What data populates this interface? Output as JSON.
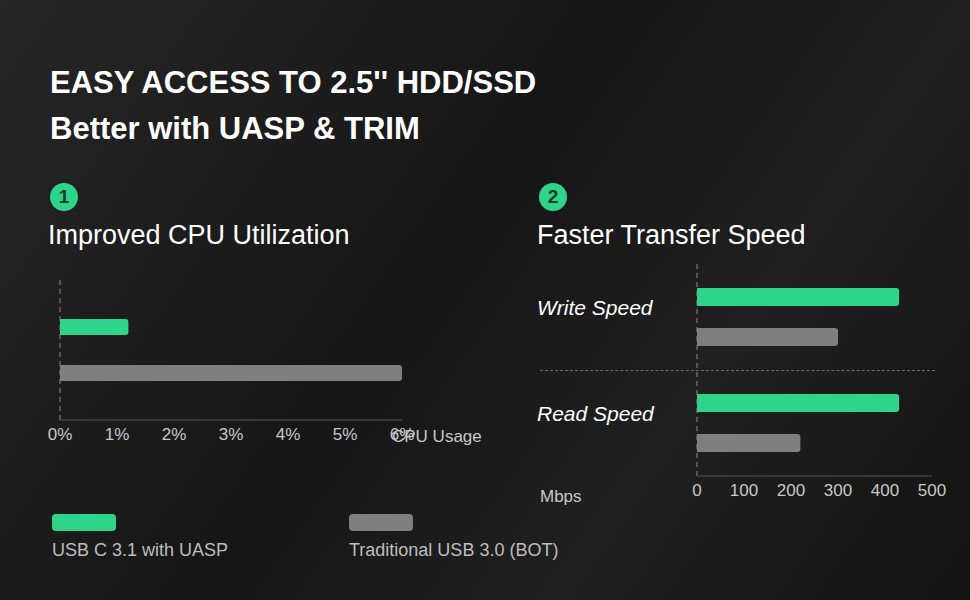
{
  "title": "EASY ACCESS TO 2.5'' HDD/SSD",
  "subtitle": "Better with UASP & TRIM",
  "chart_data": [
    {
      "type": "bar",
      "orientation": "horizontal",
      "badge": "1",
      "title": "Improved CPU Utilization",
      "xlabel": "CPU Usage",
      "categories": [
        null
      ],
      "series": [
        {
          "name": "USB C 3.1 with UASP",
          "color": "#2ed48a",
          "values": [
            1.2
          ]
        },
        {
          "name": "Traditional USB 3.0 (BOT)",
          "color": "#7f7f7f",
          "values": [
            6
          ]
        }
      ],
      "xlim": [
        0,
        6
      ],
      "xticks": [
        {
          "value": 0,
          "label": "0%"
        },
        {
          "value": 1,
          "label": "1%"
        },
        {
          "value": 2,
          "label": "2%"
        },
        {
          "value": 3,
          "label": "3%"
        },
        {
          "value": 4,
          "label": "4%"
        },
        {
          "value": 5,
          "label": "5%"
        },
        {
          "value": 6,
          "label": "6%"
        }
      ],
      "tick_labels": "x",
      "legend": "lower left"
    },
    {
      "type": "bar",
      "orientation": "horizontal",
      "badge": "2",
      "title": "Faster Transfer Speed",
      "xlabel": "Mbps",
      "categories": [
        "Write Speed",
        "Read Speed"
      ],
      "series": [
        {
          "name": "USB C 3.1 with UASP",
          "color": "#2ed48a",
          "values": [
            430,
            430
          ]
        },
        {
          "name": "Traditional USB 3.0 (BOT)",
          "color": "#7f7f7f",
          "values": [
            300,
            220
          ]
        }
      ],
      "xlim": [
        0,
        500
      ],
      "xticks": [
        0,
        100,
        200,
        300,
        400,
        500
      ]
    }
  ]
}
